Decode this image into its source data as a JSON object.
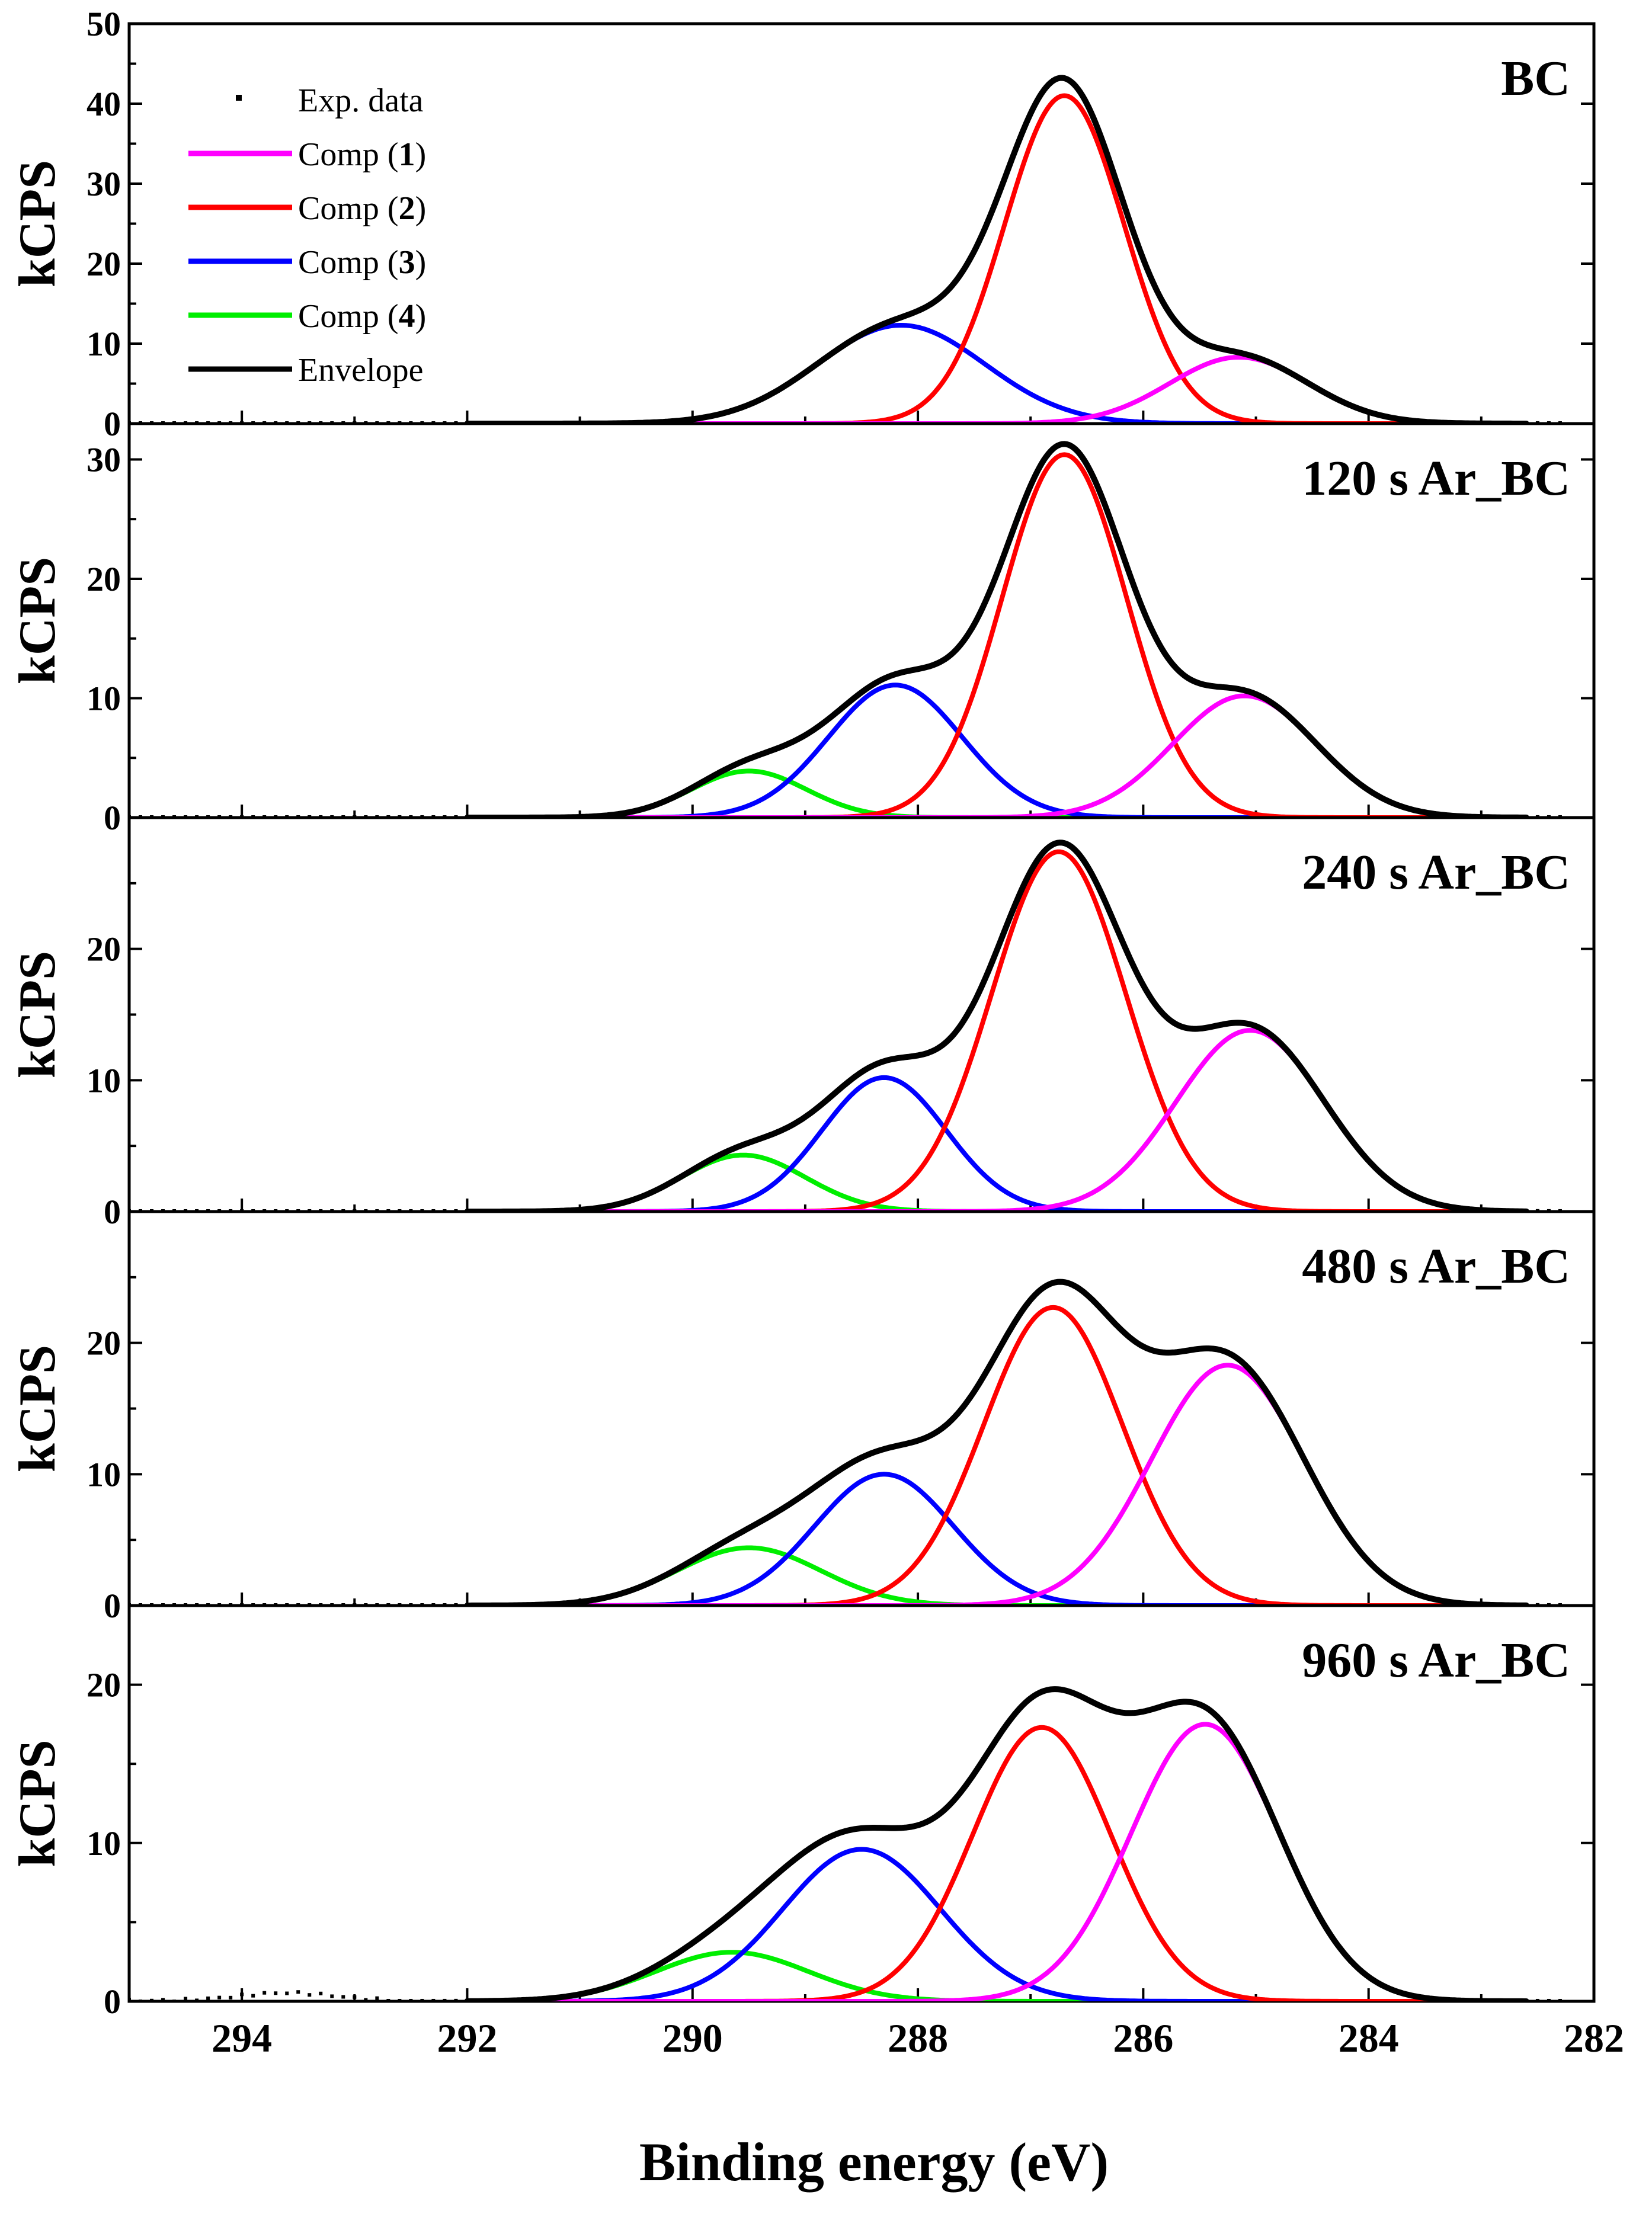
{
  "chart_data": {
    "type": "line",
    "xlabel": "Binding energy (eV)",
    "xlim": [
      295,
      282
    ],
    "x_reversed": true,
    "x_ticks": [
      294,
      292,
      290,
      288,
      286,
      284,
      282
    ],
    "x_ticklabels": [
      "294",
      "292",
      "290",
      "288",
      "286",
      "284",
      "282"
    ],
    "legend": {
      "placement": "top-left",
      "entries": [
        {
          "key": "exp",
          "text": "Exp. data",
          "marker": "dots",
          "color": "#000000"
        },
        {
          "key": "c1",
          "prefix": "Comp (",
          "num": "1",
          "suffix": ")",
          "color": "#ff00ff"
        },
        {
          "key": "c2",
          "prefix": "Comp (",
          "num": "2",
          "suffix": ")",
          "color": "#ff0000"
        },
        {
          "key": "c3",
          "prefix": "Comp (",
          "num": "3",
          "suffix": ")",
          "color": "#0000ff"
        },
        {
          "key": "c4",
          "prefix": "Comp (",
          "num": "4",
          "suffix": ")",
          "color": "#00ee00"
        },
        {
          "key": "env",
          "text": "Envelope",
          "color": "#000000"
        }
      ]
    },
    "panels": [
      {
        "title": "BC",
        "ylabel": "kCPS",
        "ylim": [
          0,
          50
        ],
        "y_ticks": [
          0,
          10,
          20,
          30,
          40,
          50
        ],
        "y_ticklabels": [
          "0",
          "10",
          "20",
          "30",
          "40",
          "50"
        ],
        "components": [
          {
            "name": "Comp (1)",
            "center": 285.15,
            "height": 8.3,
            "fwhm": 1.45
          },
          {
            "name": "Comp (2)",
            "center": 286.7,
            "height": 41.0,
            "fwhm": 1.25
          },
          {
            "name": "Comp (3)",
            "center": 288.15,
            "height": 12.3,
            "fwhm": 1.75
          }
        ],
        "exp_noise_region": null
      },
      {
        "title": "120 s Ar_BC",
        "ylabel": "kCPS",
        "ylim": [
          0,
          33
        ],
        "y_ticks": [
          0,
          10,
          20,
          30
        ],
        "y_ticklabels": [
          "0",
          "10",
          "20",
          "30"
        ],
        "components": [
          {
            "name": "Comp (1)",
            "center": 285.1,
            "height": 10.2,
            "fwhm": 1.5
          },
          {
            "name": "Comp (2)",
            "center": 286.7,
            "height": 30.4,
            "fwhm": 1.3
          },
          {
            "name": "Comp (3)",
            "center": 288.2,
            "height": 11.1,
            "fwhm": 1.4
          },
          {
            "name": "Comp (4)",
            "center": 289.5,
            "height": 3.9,
            "fwhm": 1.2
          }
        ],
        "exp_noise_region": null
      },
      {
        "title": "240 s Ar_BC",
        "ylabel": "kCPS",
        "ylim": [
          0,
          30
        ],
        "y_ticks": [
          0,
          10,
          20
        ],
        "y_ticklabels": [
          "0",
          "10",
          "20"
        ],
        "components": [
          {
            "name": "Comp (1)",
            "center": 285.05,
            "height": 13.8,
            "fwhm": 1.55
          },
          {
            "name": "Comp (2)",
            "center": 286.75,
            "height": 27.4,
            "fwhm": 1.4
          },
          {
            "name": "Comp (3)",
            "center": 288.3,
            "height": 10.2,
            "fwhm": 1.3
          },
          {
            "name": "Comp (4)",
            "center": 289.55,
            "height": 4.3,
            "fwhm": 1.3
          }
        ],
        "exp_noise_region": null
      },
      {
        "title": "480 s Ar_BC",
        "ylabel": "kCPS",
        "ylim": [
          0,
          30
        ],
        "y_ticks": [
          0,
          10,
          20
        ],
        "y_ticklabels": [
          "0",
          "10",
          "20"
        ],
        "components": [
          {
            "name": "Comp (1)",
            "center": 285.25,
            "height": 18.3,
            "fwhm": 1.6
          },
          {
            "name": "Comp (2)",
            "center": 286.8,
            "height": 22.7,
            "fwhm": 1.45
          },
          {
            "name": "Comp (3)",
            "center": 288.3,
            "height": 10.0,
            "fwhm": 1.45
          },
          {
            "name": "Comp (4)",
            "center": 289.5,
            "height": 4.4,
            "fwhm": 1.5
          }
        ],
        "exp_noise_region": null
      },
      {
        "title": "960 s Ar_BC",
        "ylabel": "kCPS",
        "ylim": [
          0,
          25
        ],
        "y_ticks": [
          0,
          10,
          20
        ],
        "y_ticklabels": [
          "0",
          "10",
          "20"
        ],
        "components": [
          {
            "name": "Comp (1)",
            "center": 285.45,
            "height": 17.5,
            "fwhm": 1.55
          },
          {
            "name": "Comp (2)",
            "center": 286.9,
            "height": 17.3,
            "fwhm": 1.45
          },
          {
            "name": "Comp (3)",
            "center": 288.5,
            "height": 9.6,
            "fwhm": 1.65
          },
          {
            "name": "Comp (4)",
            "center": 289.65,
            "height": 3.1,
            "fwhm": 1.6
          }
        ],
        "exp_noise_region": [
          292.7,
          295.0
        ]
      }
    ]
  }
}
